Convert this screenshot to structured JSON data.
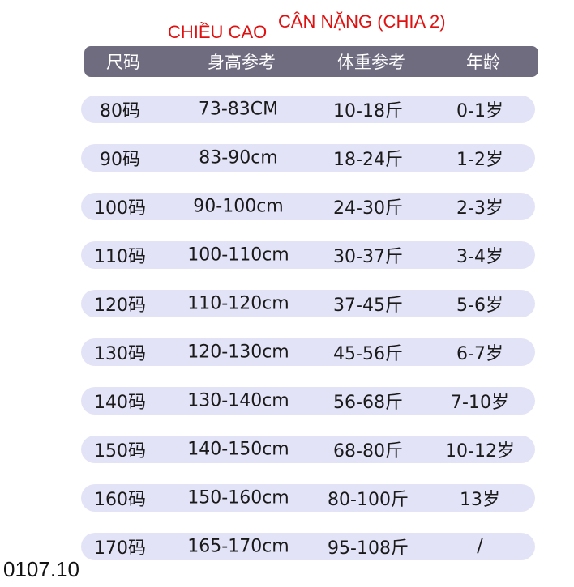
{
  "annotations": {
    "height_label": "CHIỀU CAO",
    "weight_label": "CÂN NẶNG (CHIA 2)"
  },
  "header": {
    "size": "尺码",
    "height": "身高参考",
    "weight": "体重参考",
    "age": "年龄"
  },
  "rows": [
    {
      "size": "80码",
      "height": "73-83CM",
      "weight": "10-18斤",
      "age": "0-1岁"
    },
    {
      "size": "90码",
      "height": "83-90cm",
      "weight": "18-24斤",
      "age": "1-2岁"
    },
    {
      "size": "100码",
      "height": "90-100cm",
      "weight": "24-30斤",
      "age": "2-3岁"
    },
    {
      "size": "110码",
      "height": "100-110cm",
      "weight": "30-37斤",
      "age": "3-4岁"
    },
    {
      "size": "120码",
      "height": "110-120cm",
      "weight": "37-45斤",
      "age": "5-6岁"
    },
    {
      "size": "130码",
      "height": "120-130cm",
      "weight": "45-56斤",
      "age": "6-7岁"
    },
    {
      "size": "140码",
      "height": "130-140cm",
      "weight": "56-68斤",
      "age": "7-10岁"
    },
    {
      "size": "150码",
      "height": "140-150cm",
      "weight": "68-80斤",
      "age": "10-12岁"
    },
    {
      "size": "160码",
      "height": "150-160cm",
      "weight": "80-100斤",
      "age": "13岁"
    },
    {
      "size": "170码",
      "height": "165-170cm",
      "weight": "95-108斤",
      "age": "/"
    }
  ],
  "footer": {
    "code": "0107.10"
  },
  "colors": {
    "annotation": "#e01010",
    "header_bg": "#6f6c80",
    "row_bg": "#e3e3f8"
  }
}
